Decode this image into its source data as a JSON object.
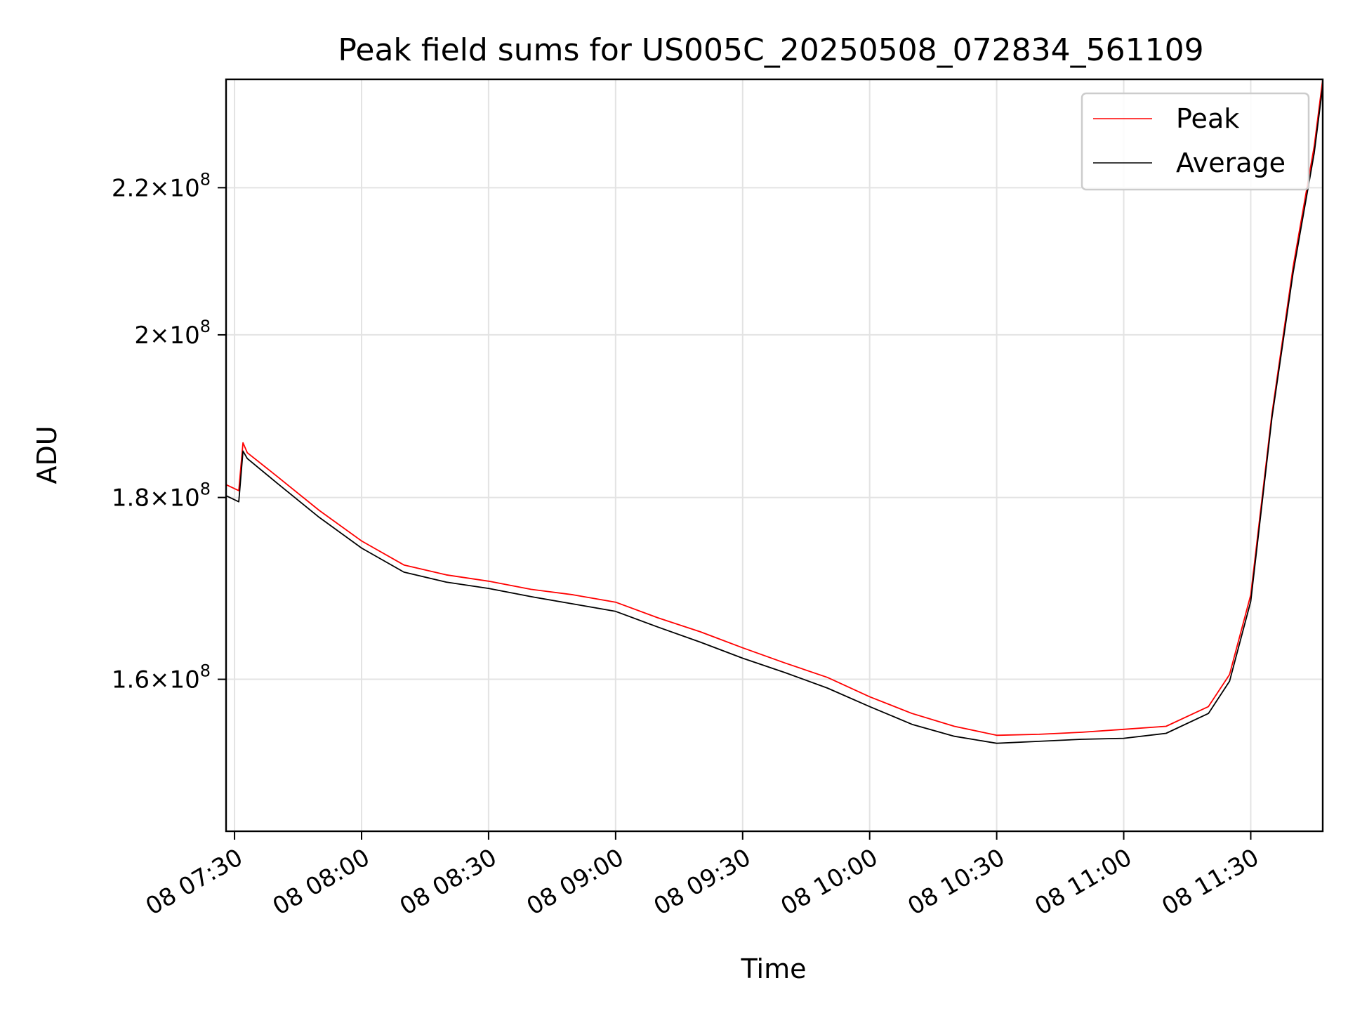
{
  "chart_data": {
    "type": "line",
    "title": "Peak field sums for US005C_20250508_072834_561109",
    "xlabel": "Time",
    "ylabel": "ADU",
    "y_scale": "log",
    "ylim": [
      145000000,
      236000000
    ],
    "xlim": [
      "08 07:28",
      "08 11:47"
    ],
    "x_ticks": [
      "08 07:30",
      "08 08:00",
      "08 08:30",
      "08 09:00",
      "08 09:30",
      "08 10:00",
      "08 10:30",
      "08 11:00",
      "08 11:30"
    ],
    "y_ticks": [
      {
        "value": 160000000,
        "mantissa": "1.6",
        "exponent": "8"
      },
      {
        "value": 180000000,
        "mantissa": "1.8",
        "exponent": "8"
      },
      {
        "value": 200000000,
        "mantissa": "2",
        "exponent": "8"
      },
      {
        "value": 220000000,
        "mantissa": "2.2",
        "exponent": "8"
      }
    ],
    "grid": true,
    "legend_position": "top-right",
    "series": [
      {
        "name": "Peak",
        "color": "#ff0000",
        "x": [
          "08 07:28",
          "08 07:31",
          "08 07:32",
          "08 07:33",
          "08 07:40",
          "08 07:50",
          "08 08:00",
          "08 08:10",
          "08 08:20",
          "08 08:30",
          "08 08:40",
          "08 08:50",
          "08 09:00",
          "08 09:10",
          "08 09:20",
          "08 09:30",
          "08 09:40",
          "08 09:50",
          "08 10:00",
          "08 10:10",
          "08 10:20",
          "08 10:30",
          "08 10:40",
          "08 10:50",
          "08 11:00",
          "08 11:10",
          "08 11:20",
          "08 11:25",
          "08 11:30",
          "08 11:35",
          "08 11:40",
          "08 11:45",
          "08 11:47"
        ],
        "y": [
          181500000,
          180800000,
          186500000,
          185300000,
          182500000,
          178500000,
          175000000,
          172300000,
          171200000,
          170500000,
          169600000,
          169000000,
          168200000,
          166500000,
          165000000,
          163300000,
          161700000,
          160200000,
          158200000,
          156500000,
          155200000,
          154300000,
          154400000,
          154600000,
          154900000,
          155200000,
          157200000,
          160500000,
          169000000,
          190000000,
          209000000,
          226000000,
          236000000
        ]
      },
      {
        "name": "Average",
        "color": "#000000",
        "x": [
          "08 07:28",
          "08 07:31",
          "08 07:32",
          "08 07:33",
          "08 07:40",
          "08 07:50",
          "08 08:00",
          "08 08:10",
          "08 08:20",
          "08 08:30",
          "08 08:40",
          "08 08:50",
          "08 09:00",
          "08 09:10",
          "08 09:20",
          "08 09:30",
          "08 09:40",
          "08 09:50",
          "08 10:00",
          "08 10:10",
          "08 10:20",
          "08 10:30",
          "08 10:40",
          "08 10:50",
          "08 11:00",
          "08 11:10",
          "08 11:20",
          "08 11:25",
          "08 11:30",
          "08 11:35",
          "08 11:40",
          "08 11:45",
          "08 11:47"
        ],
        "y": [
          180200000,
          179500000,
          185500000,
          184600000,
          181700000,
          177700000,
          174200000,
          171500000,
          170400000,
          169700000,
          168800000,
          168000000,
          167200000,
          165500000,
          163900000,
          162200000,
          160700000,
          159100000,
          157200000,
          155400000,
          154200000,
          153500000,
          153700000,
          153900000,
          154000000,
          154500000,
          156500000,
          159800000,
          168300000,
          189500000,
          208200000,
          225000000,
          235000000
        ]
      }
    ]
  }
}
